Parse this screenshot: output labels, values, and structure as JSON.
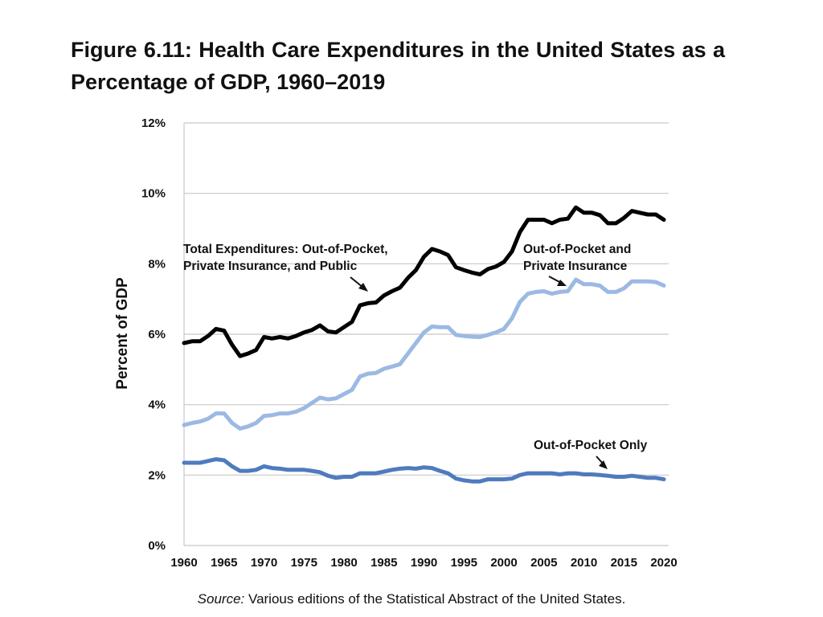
{
  "figure": {
    "title": "Figure 6.11: Health Care Expenditures in the United States as a Percentage of GDP, 1960–2019",
    "source_label": "Source:",
    "source_text": " Various editions of the Statistical Abstract of the United States."
  },
  "colors": {
    "total": "#000000",
    "private": "#9bb9e3",
    "oop": "#4f7bbe",
    "grid": "#c8c8c8"
  },
  "chart_data": {
    "type": "line",
    "title": "Figure 6.11: Health Care Expenditures in the United States as a Percentage of GDP, 1960–2019",
    "xlabel": "",
    "ylabel": "Percent of GDP",
    "xlim": [
      1960,
      2020
    ],
    "ylim": [
      0,
      12
    ],
    "grid": true,
    "x_ticks": [
      1960,
      1965,
      1970,
      1975,
      1980,
      1985,
      1990,
      1995,
      2000,
      2005,
      2010,
      2015,
      2020
    ],
    "x_tick_labels": [
      "1960",
      "1965",
      "1970",
      "1975",
      "1980",
      "1985",
      "1990",
      "1995",
      "2000",
      "2005",
      "2010",
      "2015",
      "2020"
    ],
    "y_ticks": [
      0,
      2,
      4,
      6,
      8,
      10,
      12
    ],
    "y_tick_labels": [
      "0%",
      "2%",
      "4%",
      "6%",
      "8%",
      "10%",
      "12%"
    ],
    "annotations": [
      {
        "series": "total",
        "lines": [
          "Total Expenditures: Out-of-Pocket,",
          "Private Insurance, and Public"
        ],
        "anchor": "around 1960–1983 above the total line"
      },
      {
        "series": "private",
        "lines": [
          "Out-of-Pocket and",
          "Private Insurance"
        ],
        "anchor": "around 2003–2018 above the private line"
      },
      {
        "series": "oop",
        "lines": [
          "Out-of-Pocket Only"
        ],
        "anchor": "around 2004–2020 above the out-of-pocket line"
      }
    ],
    "series": [
      {
        "key": "total",
        "name": "Total Expenditures: Out-of-Pocket, Private Insurance, and Public",
        "x": [
          1960,
          1961,
          1962,
          1963,
          1964,
          1965,
          1966,
          1967,
          1968,
          1969,
          1970,
          1971,
          1972,
          1973,
          1974,
          1975,
          1976,
          1977,
          1978,
          1979,
          1980,
          1981,
          1982,
          1983,
          1984,
          1985,
          1986,
          1987,
          1988,
          1989,
          1990,
          1991,
          1992,
          1993,
          1994,
          1995,
          1996,
          1997,
          1998,
          1999,
          2000,
          2001,
          2002,
          2003,
          2004,
          2005,
          2006,
          2007,
          2008,
          2009,
          2010,
          2011,
          2012,
          2013,
          2014,
          2015,
          2016,
          2017,
          2018,
          2019,
          2020
        ],
        "values": [
          5.75,
          5.8,
          5.8,
          5.95,
          6.15,
          6.1,
          5.7,
          5.38,
          5.45,
          5.55,
          5.92,
          5.88,
          5.92,
          5.88,
          5.95,
          6.05,
          6.12,
          6.25,
          6.08,
          6.05,
          6.2,
          6.35,
          6.82,
          6.88,
          6.9,
          7.1,
          7.22,
          7.32,
          7.6,
          7.82,
          8.2,
          8.42,
          8.35,
          8.25,
          7.9,
          7.82,
          7.75,
          7.7,
          7.85,
          7.92,
          8.05,
          8.35,
          8.9,
          9.25,
          9.25,
          9.25,
          9.15,
          9.25,
          9.28,
          9.6,
          9.45,
          9.45,
          9.38,
          9.15,
          9.15,
          9.3,
          9.5,
          9.45,
          9.4,
          9.4,
          9.25
        ]
      },
      {
        "key": "private",
        "name": "Out-of-Pocket and Private Insurance",
        "x": [
          1960,
          1961,
          1962,
          1963,
          1964,
          1965,
          1966,
          1967,
          1968,
          1969,
          1970,
          1971,
          1972,
          1973,
          1974,
          1975,
          1976,
          1977,
          1978,
          1979,
          1980,
          1981,
          1982,
          1983,
          1984,
          1985,
          1986,
          1987,
          1988,
          1989,
          1990,
          1991,
          1992,
          1993,
          1994,
          1995,
          1996,
          1997,
          1998,
          1999,
          2000,
          2001,
          2002,
          2003,
          2004,
          2005,
          2006,
          2007,
          2008,
          2009,
          2010,
          2011,
          2012,
          2013,
          2014,
          2015,
          2016,
          2017,
          2018,
          2019,
          2020
        ],
        "values": [
          3.42,
          3.48,
          3.52,
          3.6,
          3.75,
          3.75,
          3.48,
          3.32,
          3.38,
          3.48,
          3.68,
          3.7,
          3.75,
          3.75,
          3.8,
          3.9,
          4.05,
          4.2,
          4.15,
          4.18,
          4.3,
          4.42,
          4.8,
          4.88,
          4.9,
          5.02,
          5.08,
          5.15,
          5.45,
          5.75,
          6.05,
          6.22,
          6.2,
          6.2,
          5.98,
          5.95,
          5.93,
          5.92,
          5.98,
          6.05,
          6.15,
          6.45,
          6.92,
          7.15,
          7.2,
          7.22,
          7.15,
          7.2,
          7.22,
          7.55,
          7.42,
          7.42,
          7.38,
          7.2,
          7.2,
          7.3,
          7.5,
          7.5,
          7.5,
          7.48,
          7.38
        ]
      },
      {
        "key": "oop",
        "name": "Out-of-Pocket Only",
        "x": [
          1960,
          1961,
          1962,
          1963,
          1964,
          1965,
          1966,
          1967,
          1968,
          1969,
          1970,
          1971,
          1972,
          1973,
          1974,
          1975,
          1976,
          1977,
          1978,
          1979,
          1980,
          1981,
          1982,
          1983,
          1984,
          1985,
          1986,
          1987,
          1988,
          1989,
          1990,
          1991,
          1992,
          1993,
          1994,
          1995,
          1996,
          1997,
          1998,
          1999,
          2000,
          2001,
          2002,
          2003,
          2004,
          2005,
          2006,
          2007,
          2008,
          2009,
          2010,
          2011,
          2012,
          2013,
          2014,
          2015,
          2016,
          2017,
          2018,
          2019,
          2020
        ],
        "values": [
          2.35,
          2.35,
          2.35,
          2.4,
          2.45,
          2.42,
          2.25,
          2.12,
          2.12,
          2.15,
          2.25,
          2.2,
          2.18,
          2.15,
          2.15,
          2.15,
          2.12,
          2.08,
          1.98,
          1.92,
          1.95,
          1.95,
          2.05,
          2.05,
          2.05,
          2.1,
          2.15,
          2.18,
          2.2,
          2.18,
          2.22,
          2.2,
          2.12,
          2.05,
          1.9,
          1.85,
          1.82,
          1.82,
          1.88,
          1.88,
          1.88,
          1.9,
          2.0,
          2.05,
          2.05,
          2.05,
          2.05,
          2.02,
          2.05,
          2.05,
          2.02,
          2.02,
          2.0,
          1.98,
          1.95,
          1.95,
          1.98,
          1.95,
          1.92,
          1.92,
          1.88
        ]
      }
    ]
  }
}
